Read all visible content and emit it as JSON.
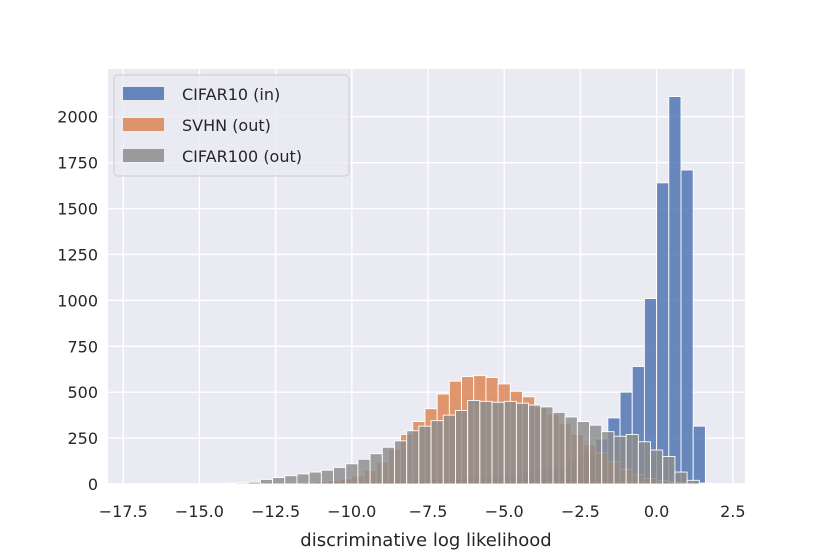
{
  "chart_data": {
    "type": "histogram",
    "title": "",
    "xlabel": "discriminative log likelihood",
    "ylabel": "",
    "xlim": [
      -18.0,
      2.9
    ],
    "ylim": [
      0,
      2260
    ],
    "x_ticks": [
      {
        "value": -17.5,
        "label": "−17.5"
      },
      {
        "value": -15.0,
        "label": "−15.0"
      },
      {
        "value": -12.5,
        "label": "−12.5"
      },
      {
        "value": -10.0,
        "label": "−10.0"
      },
      {
        "value": -7.5,
        "label": "−7.5"
      },
      {
        "value": -5.0,
        "label": "−5.0"
      },
      {
        "value": -2.5,
        "label": "−2.5"
      },
      {
        "value": 0.0,
        "label": "0.0"
      },
      {
        "value": 2.5,
        "label": "2.5"
      }
    ],
    "y_ticks": [
      {
        "value": 0,
        "label": "0"
      },
      {
        "value": 250,
        "label": "250"
      },
      {
        "value": 500,
        "label": "500"
      },
      {
        "value": 750,
        "label": "750"
      },
      {
        "value": 1000,
        "label": "1000"
      },
      {
        "value": 1250,
        "label": "1250"
      },
      {
        "value": 1500,
        "label": "1500"
      },
      {
        "value": 1750,
        "label": "1750"
      },
      {
        "value": 2000,
        "label": "2000"
      }
    ],
    "grid": true,
    "legend_position": "top-left",
    "series": [
      {
        "name": "CIFAR10 (in)",
        "color": "#4c72b0",
        "bins": [
          {
            "x0": -11.0,
            "x1": -10.5,
            "count": 5
          },
          {
            "x0": -10.5,
            "x1": -10.0,
            "count": 6
          },
          {
            "x0": -10.0,
            "x1": -9.5,
            "count": 10
          },
          {
            "x0": -9.5,
            "x1": -9.0,
            "count": 12
          },
          {
            "x0": -9.0,
            "x1": -8.5,
            "count": 15
          },
          {
            "x0": -8.5,
            "x1": -8.0,
            "count": 18
          },
          {
            "x0": -8.0,
            "x1": -7.5,
            "count": 22
          },
          {
            "x0": -7.5,
            "x1": -7.0,
            "count": 25
          },
          {
            "x0": -7.0,
            "x1": -6.5,
            "count": 28
          },
          {
            "x0": -6.5,
            "x1": -6.0,
            "count": 32
          },
          {
            "x0": -6.0,
            "x1": -5.5,
            "count": 38
          },
          {
            "x0": -5.5,
            "x1": -5.0,
            "count": 45
          },
          {
            "x0": -5.0,
            "x1": -4.5,
            "count": 55
          },
          {
            "x0": -4.5,
            "x1": -4.0,
            "count": 65
          },
          {
            "x0": -4.0,
            "x1": -3.5,
            "count": 80
          },
          {
            "x0": -3.5,
            "x1": -3.0,
            "count": 100
          },
          {
            "x0": -3.0,
            "x1": -2.5,
            "count": 130
          },
          {
            "x0": -2.5,
            "x1": -2.0,
            "count": 175
          },
          {
            "x0": -2.0,
            "x1": -1.6,
            "count": 245
          },
          {
            "x0": -1.6,
            "x1": -1.2,
            "count": 360
          },
          {
            "x0": -1.2,
            "x1": -0.8,
            "count": 500
          },
          {
            "x0": -0.8,
            "x1": -0.4,
            "count": 640
          },
          {
            "x0": -0.4,
            "x1": 0.0,
            "count": 1010
          },
          {
            "x0": 0.0,
            "x1": 0.4,
            "count": 1640
          },
          {
            "x0": 0.4,
            "x1": 0.8,
            "count": 2110
          },
          {
            "x0": 0.8,
            "x1": 1.2,
            "count": 1710
          },
          {
            "x0": 1.2,
            "x1": 1.6,
            "count": 315
          }
        ]
      },
      {
        "name": "SVHN (out)",
        "color": "#dd8452",
        "bins": [
          {
            "x0": -12.4,
            "x1": -12.0,
            "count": 3
          },
          {
            "x0": -12.0,
            "x1": -11.6,
            "count": 5
          },
          {
            "x0": -11.6,
            "x1": -11.2,
            "count": 8
          },
          {
            "x0": -11.2,
            "x1": -10.8,
            "count": 12
          },
          {
            "x0": -10.8,
            "x1": -10.4,
            "count": 18
          },
          {
            "x0": -10.4,
            "x1": -10.0,
            "count": 28
          },
          {
            "x0": -10.0,
            "x1": -9.6,
            "count": 45
          },
          {
            "x0": -9.6,
            "x1": -9.2,
            "count": 75
          },
          {
            "x0": -9.2,
            "x1": -8.8,
            "count": 120
          },
          {
            "x0": -8.8,
            "x1": -8.4,
            "count": 190
          },
          {
            "x0": -8.4,
            "x1": -8.0,
            "count": 270
          },
          {
            "x0": -8.0,
            "x1": -7.6,
            "count": 340
          },
          {
            "x0": -7.6,
            "x1": -7.2,
            "count": 410
          },
          {
            "x0": -7.2,
            "x1": -6.8,
            "count": 490
          },
          {
            "x0": -6.8,
            "x1": -6.4,
            "count": 560
          },
          {
            "x0": -6.4,
            "x1": -6.0,
            "count": 585
          },
          {
            "x0": -6.0,
            "x1": -5.6,
            "count": 590
          },
          {
            "x0": -5.6,
            "x1": -5.2,
            "count": 580
          },
          {
            "x0": -5.2,
            "x1": -4.8,
            "count": 545
          },
          {
            "x0": -4.8,
            "x1": -4.4,
            "count": 505
          },
          {
            "x0": -4.4,
            "x1": -4.0,
            "count": 475
          },
          {
            "x0": -4.0,
            "x1": -3.6,
            "count": 420
          },
          {
            "x0": -3.6,
            "x1": -3.2,
            "count": 380
          },
          {
            "x0": -3.2,
            "x1": -2.8,
            "count": 330
          },
          {
            "x0": -2.8,
            "x1": -2.4,
            "count": 270
          },
          {
            "x0": -2.4,
            "x1": -2.0,
            "count": 215
          },
          {
            "x0": -2.0,
            "x1": -1.6,
            "count": 170
          },
          {
            "x0": -1.6,
            "x1": -1.2,
            "count": 120
          },
          {
            "x0": -1.2,
            "x1": -0.8,
            "count": 80
          },
          {
            "x0": -0.8,
            "x1": -0.4,
            "count": 50
          },
          {
            "x0": -0.4,
            "x1": 0.0,
            "count": 30
          },
          {
            "x0": 0.0,
            "x1": 0.4,
            "count": 18
          },
          {
            "x0": 0.4,
            "x1": 0.8,
            "count": 10
          },
          {
            "x0": 0.8,
            "x1": 1.2,
            "count": 5
          }
        ]
      },
      {
        "name": "CIFAR100 (out)",
        "color": "#8c8c8c",
        "bins": [
          {
            "x0": -15.0,
            "x1": -14.6,
            "count": 2
          },
          {
            "x0": -14.6,
            "x1": -14.2,
            "count": 3
          },
          {
            "x0": -14.2,
            "x1": -13.8,
            "count": 4
          },
          {
            "x0": -13.8,
            "x1": -13.4,
            "count": 6
          },
          {
            "x0": -13.4,
            "x1": -13.0,
            "count": 10
          },
          {
            "x0": -13.0,
            "x1": -12.6,
            "count": 25
          },
          {
            "x0": -12.6,
            "x1": -12.2,
            "count": 35
          },
          {
            "x0": -12.2,
            "x1": -11.8,
            "count": 45
          },
          {
            "x0": -11.8,
            "x1": -11.4,
            "count": 55
          },
          {
            "x0": -11.4,
            "x1": -11.0,
            "count": 65
          },
          {
            "x0": -11.0,
            "x1": -10.6,
            "count": 75
          },
          {
            "x0": -10.6,
            "x1": -10.2,
            "count": 90
          },
          {
            "x0": -10.2,
            "x1": -9.8,
            "count": 110
          },
          {
            "x0": -9.8,
            "x1": -9.4,
            "count": 135
          },
          {
            "x0": -9.4,
            "x1": -9.0,
            "count": 165
          },
          {
            "x0": -9.0,
            "x1": -8.6,
            "count": 200
          },
          {
            "x0": -8.6,
            "x1": -8.2,
            "count": 235
          },
          {
            "x0": -8.2,
            "x1": -7.8,
            "count": 290
          },
          {
            "x0": -7.8,
            "x1": -7.4,
            "count": 315
          },
          {
            "x0": -7.4,
            "x1": -7.0,
            "count": 345
          },
          {
            "x0": -7.0,
            "x1": -6.6,
            "count": 375
          },
          {
            "x0": -6.6,
            "x1": -6.2,
            "count": 400
          },
          {
            "x0": -6.2,
            "x1": -5.8,
            "count": 455
          },
          {
            "x0": -5.8,
            "x1": -5.4,
            "count": 450
          },
          {
            "x0": -5.4,
            "x1": -5.0,
            "count": 445
          },
          {
            "x0": -5.0,
            "x1": -4.6,
            "count": 450
          },
          {
            "x0": -4.6,
            "x1": -4.2,
            "count": 440
          },
          {
            "x0": -4.2,
            "x1": -3.8,
            "count": 430
          },
          {
            "x0": -3.8,
            "x1": -3.4,
            "count": 420
          },
          {
            "x0": -3.4,
            "x1": -3.0,
            "count": 390
          },
          {
            "x0": -3.0,
            "x1": -2.6,
            "count": 365
          },
          {
            "x0": -2.6,
            "x1": -2.2,
            "count": 340
          },
          {
            "x0": -2.2,
            "x1": -1.8,
            "count": 320
          },
          {
            "x0": -1.8,
            "x1": -1.4,
            "count": 285
          },
          {
            "x0": -1.4,
            "x1": -1.0,
            "count": 260
          },
          {
            "x0": -1.0,
            "x1": -0.6,
            "count": 270
          },
          {
            "x0": -0.6,
            "x1": -0.2,
            "count": 230
          },
          {
            "x0": -0.2,
            "x1": 0.2,
            "count": 185
          },
          {
            "x0": 0.2,
            "x1": 0.6,
            "count": 150
          },
          {
            "x0": 0.6,
            "x1": 1.0,
            "count": 65
          },
          {
            "x0": 1.0,
            "x1": 1.4,
            "count": 20
          },
          {
            "x0": 1.4,
            "x1": 1.8,
            "count": 5
          }
        ]
      }
    ]
  }
}
